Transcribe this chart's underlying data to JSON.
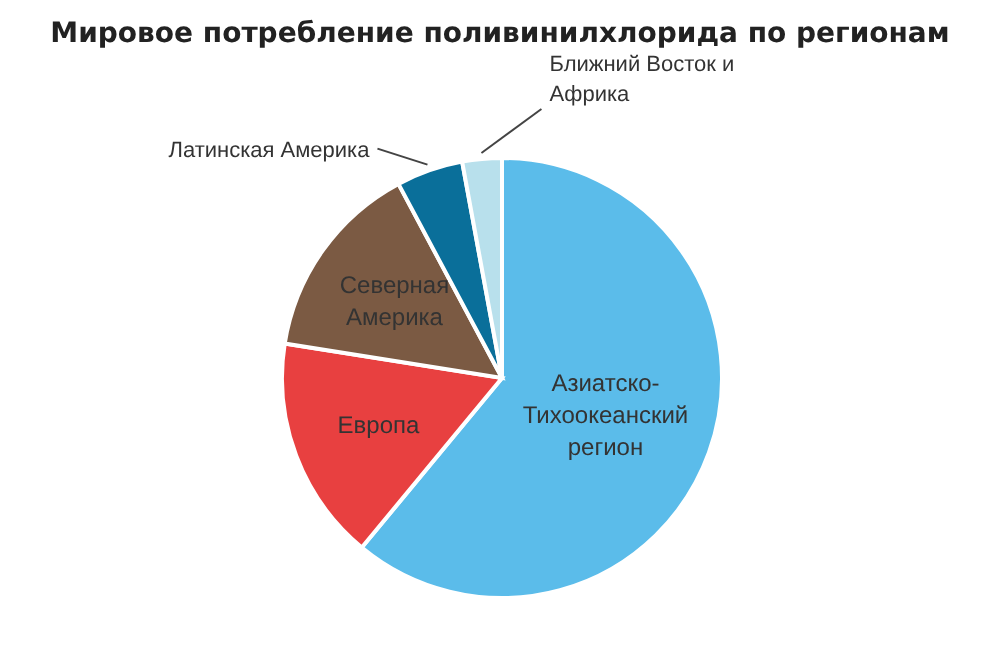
{
  "chart_data": {
    "type": "pie",
    "title": "Мировое потребление поливинилхлорида по регионам",
    "categories": [
      "Азиатско-Тихоокеанский регион",
      "Европа",
      "Северная Америка",
      "Латинская Америка",
      "Ближний Восток и Африка"
    ],
    "values": [
      61,
      16.5,
      14.7,
      4.9,
      2.9
    ],
    "colors": [
      "#5bbcea",
      "#e84040",
      "#7b5a43",
      "#0a6f9a",
      "#b8e0ec"
    ],
    "legend": false
  }
}
